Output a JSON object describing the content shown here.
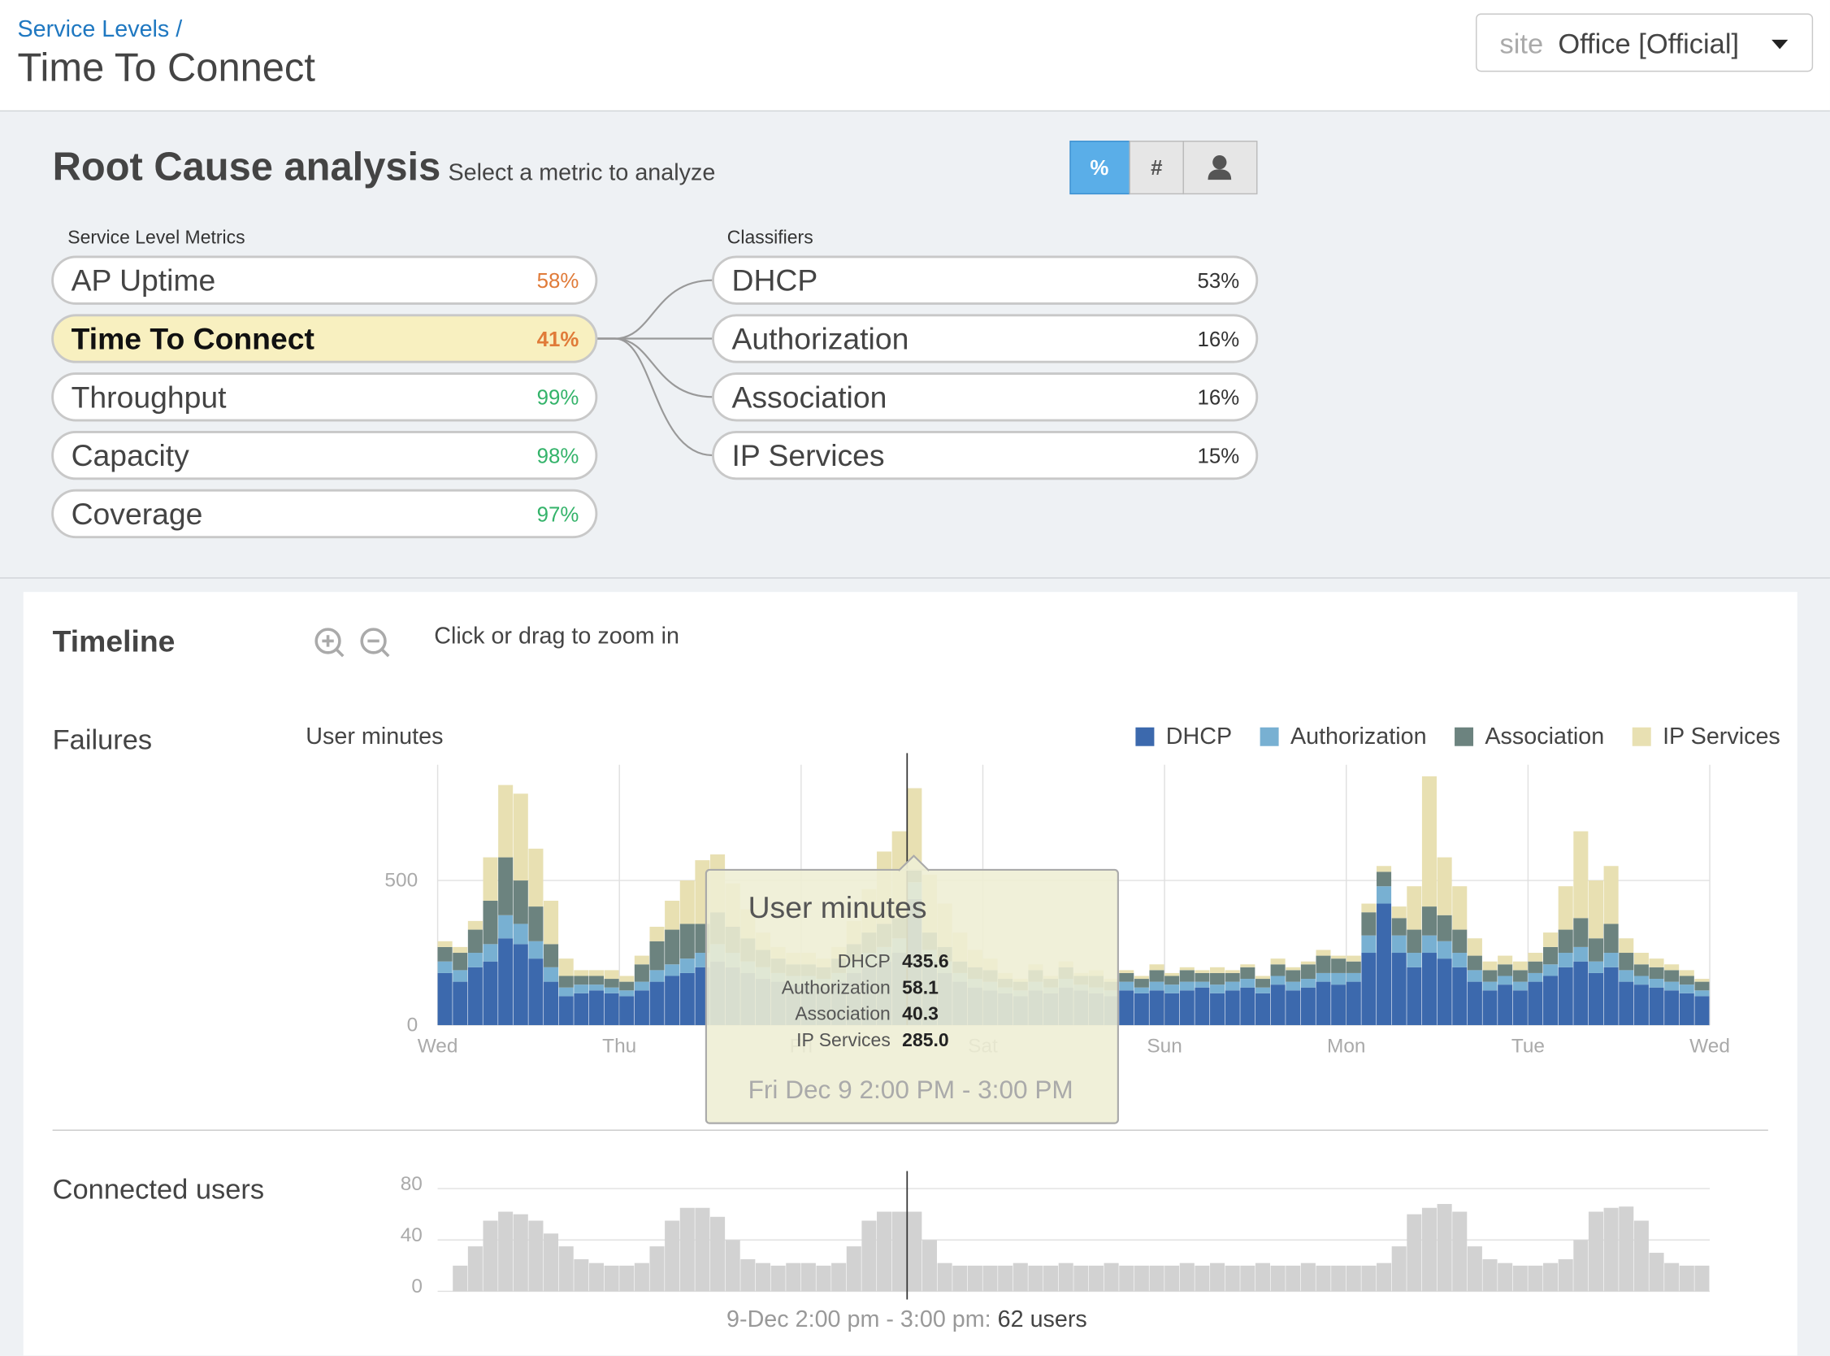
{
  "header": {
    "breadcrumb": "Service Levels /",
    "title": "Time To Connect",
    "site": {
      "label": "site",
      "value": "Office [Official]"
    }
  },
  "root_cause": {
    "title": "Root Cause analysis",
    "subtitle": "Select a metric to analyze",
    "modes": [
      "%",
      "#"
    ],
    "metrics": {
      "heading": "Service Level Metrics",
      "selected": 1,
      "items": [
        {
          "label": "AP Uptime",
          "value": "58%",
          "color": "#e07b39"
        },
        {
          "label": "Time To Connect",
          "value": "41%",
          "color": "#e07b39"
        },
        {
          "label": "Throughput",
          "value": "99%",
          "color": "#34b36a"
        },
        {
          "label": "Capacity",
          "value": "98%",
          "color": "#34b36a"
        },
        {
          "label": "Coverage",
          "value": "97%",
          "color": "#34b36a"
        }
      ]
    },
    "classifiers": {
      "heading": "Classifiers",
      "items": [
        {
          "label": "DHCP",
          "value": "53%",
          "color": "#333333"
        },
        {
          "label": "Authorization",
          "value": "16%",
          "color": "#333333"
        },
        {
          "label": "Association",
          "value": "16%",
          "color": "#333333"
        },
        {
          "label": "IP Services",
          "value": "15%",
          "color": "#333333"
        }
      ]
    }
  },
  "timeline": {
    "title": "Timeline",
    "hint": "Click or drag to zoom in"
  },
  "chart_data": [
    {
      "type": "bar",
      "stacked": true,
      "title": "Failures",
      "y_label": "User minutes",
      "x": [
        0,
        2,
        4,
        6,
        8,
        10,
        12,
        14,
        16,
        18,
        20,
        22,
        24,
        26,
        28,
        30,
        32,
        34,
        36,
        38,
        40,
        42,
        44,
        46,
        48,
        50,
        52,
        54,
        56,
        58,
        60,
        62,
        64,
        66,
        68,
        70,
        72,
        74,
        76,
        78,
        80,
        82,
        84,
        86,
        88,
        90,
        92,
        94,
        96,
        98,
        100,
        102,
        104,
        106,
        108,
        110,
        112,
        114,
        116,
        118,
        120,
        122,
        124,
        126,
        128,
        130,
        132,
        134,
        136,
        138,
        140,
        142,
        144,
        146,
        148,
        150,
        152,
        154,
        156,
        158,
        160,
        162,
        164,
        166
      ],
      "xlim": [
        0,
        168
      ],
      "xticks": [
        {
          "value": 0,
          "label": "Wed"
        },
        {
          "value": 24,
          "label": "Thu"
        },
        {
          "value": 48,
          "label": "Fri"
        },
        {
          "value": 72,
          "label": "Sat"
        },
        {
          "value": 96,
          "label": "Sun"
        },
        {
          "value": 120,
          "label": "Mon"
        },
        {
          "value": 144,
          "label": "Tue"
        },
        {
          "value": 168,
          "label": "Wed"
        }
      ],
      "ylim": [
        0,
        900
      ],
      "yticks": [
        0,
        500
      ],
      "grid": true,
      "legend": "top-right",
      "series": [
        {
          "name": "DHCP",
          "color": "#3c69ad",
          "values": [
            180,
            150,
            200,
            220,
            300,
            280,
            230,
            150,
            100,
            110,
            120,
            110,
            100,
            120,
            150,
            170,
            180,
            200,
            220,
            200,
            180,
            160,
            150,
            140,
            140,
            130,
            150,
            180,
            200,
            220,
            250,
            436,
            220,
            180,
            150,
            130,
            120,
            110,
            100,
            120,
            110,
            130,
            120,
            110,
            100,
            120,
            110,
            120,
            110,
            120,
            130,
            110,
            120,
            130,
            110,
            140,
            120,
            130,
            150,
            140,
            150,
            250,
            420,
            250,
            200,
            250,
            230,
            200,
            150,
            120,
            140,
            120,
            150,
            170,
            200,
            220,
            180,
            200,
            150,
            140,
            130,
            120,
            110,
            100
          ]
        },
        {
          "name": "Authorization",
          "color": "#78b0d2",
          "values": [
            40,
            40,
            50,
            60,
            80,
            70,
            60,
            50,
            30,
            30,
            20,
            20,
            20,
            30,
            40,
            40,
            50,
            50,
            60,
            50,
            40,
            40,
            30,
            30,
            30,
            30,
            30,
            40,
            50,
            50,
            50,
            58,
            40,
            40,
            30,
            30,
            30,
            20,
            20,
            30,
            20,
            30,
            20,
            20,
            20,
            30,
            20,
            30,
            30,
            30,
            20,
            30,
            30,
            30,
            20,
            30,
            30,
            30,
            30,
            40,
            30,
            60,
            60,
            60,
            50,
            60,
            60,
            50,
            40,
            30,
            30,
            30,
            30,
            40,
            50,
            50,
            40,
            50,
            40,
            30,
            30,
            30,
            30,
            20
          ]
        },
        {
          "name": "Association",
          "color": "#6c837f",
          "values": [
            50,
            60,
            80,
            150,
            200,
            150,
            120,
            80,
            40,
            30,
            30,
            30,
            30,
            60,
            100,
            120,
            120,
            100,
            110,
            90,
            80,
            60,
            50,
            40,
            40,
            40,
            50,
            60,
            70,
            80,
            70,
            40,
            60,
            50,
            40,
            40,
            40,
            30,
            30,
            40,
            30,
            40,
            30,
            40,
            30,
            30,
            30,
            40,
            30,
            40,
            30,
            40,
            30,
            40,
            30,
            40,
            40,
            50,
            60,
            50,
            40,
            80,
            50,
            60,
            80,
            100,
            90,
            80,
            50,
            40,
            40,
            40,
            40,
            60,
            80,
            100,
            80,
            100,
            60,
            40,
            40,
            40,
            30,
            30
          ]
        },
        {
          "name": "IP Services",
          "color": "#e8e0b2",
          "values": [
            20,
            20,
            30,
            150,
            250,
            300,
            200,
            150,
            60,
            20,
            20,
            30,
            20,
            30,
            50,
            100,
            150,
            220,
            200,
            150,
            100,
            60,
            40,
            40,
            40,
            30,
            40,
            80,
            150,
            250,
            300,
            285,
            200,
            150,
            100,
            60,
            40,
            20,
            10,
            20,
            10,
            20,
            10,
            20,
            10,
            10,
            10,
            20,
            10,
            10,
            10,
            20,
            10,
            10,
            10,
            20,
            10,
            10,
            20,
            10,
            20,
            30,
            20,
            40,
            150,
            450,
            200,
            150,
            60,
            30,
            30,
            30,
            30,
            50,
            150,
            300,
            200,
            200,
            50,
            40,
            30,
            20,
            20,
            10
          ]
        }
      ],
      "cursor_x": 62,
      "tooltip": {
        "title": "User minutes",
        "rows": [
          {
            "name": "DHCP",
            "value": "435.6"
          },
          {
            "name": "Authorization",
            "value": "58.1"
          },
          {
            "name": "Association",
            "value": "40.3"
          },
          {
            "name": "IP Services",
            "value": "285.0"
          }
        ],
        "footer": "Fri Dec 9 2:00 PM - 3:00 PM"
      }
    },
    {
      "type": "bar",
      "title": "Connected users",
      "x": [
        0,
        2,
        4,
        6,
        8,
        10,
        12,
        14,
        16,
        18,
        20,
        22,
        24,
        26,
        28,
        30,
        32,
        34,
        36,
        38,
        40,
        42,
        44,
        46,
        48,
        50,
        52,
        54,
        56,
        58,
        60,
        62,
        64,
        66,
        68,
        70,
        72,
        74,
        76,
        78,
        80,
        82,
        84,
        86,
        88,
        90,
        92,
        94,
        96,
        98,
        100,
        102,
        104,
        106,
        108,
        110,
        112,
        114,
        116,
        118,
        120,
        122,
        124,
        126,
        128,
        130,
        132,
        134,
        136,
        138,
        140,
        142,
        144,
        146,
        148,
        150,
        152,
        154,
        156,
        158,
        160,
        162,
        164,
        166
      ],
      "xlim": [
        0,
        168
      ],
      "ylim": [
        0,
        80
      ],
      "yticks": [
        0,
        40,
        80
      ],
      "grid": true,
      "color": "#d2d2d2",
      "values": [
        null,
        20,
        35,
        55,
        62,
        60,
        55,
        45,
        35,
        25,
        22,
        20,
        20,
        22,
        35,
        55,
        65,
        65,
        58,
        40,
        25,
        22,
        20,
        22,
        22,
        20,
        22,
        35,
        55,
        62,
        62,
        62,
        40,
        22,
        20,
        20,
        20,
        20,
        22,
        20,
        20,
        22,
        20,
        20,
        22,
        20,
        20,
        20,
        20,
        22,
        20,
        22,
        20,
        20,
        22,
        20,
        20,
        22,
        20,
        20,
        20,
        20,
        22,
        35,
        60,
        65,
        68,
        62,
        35,
        25,
        22,
        20,
        20,
        22,
        25,
        40,
        62,
        65,
        66,
        55,
        30,
        22,
        20,
        20
      ],
      "cursor_x": 62,
      "caption": "9-Dec 2:00 pm - 3:00 pm:",
      "caption_value": "62 users"
    }
  ]
}
